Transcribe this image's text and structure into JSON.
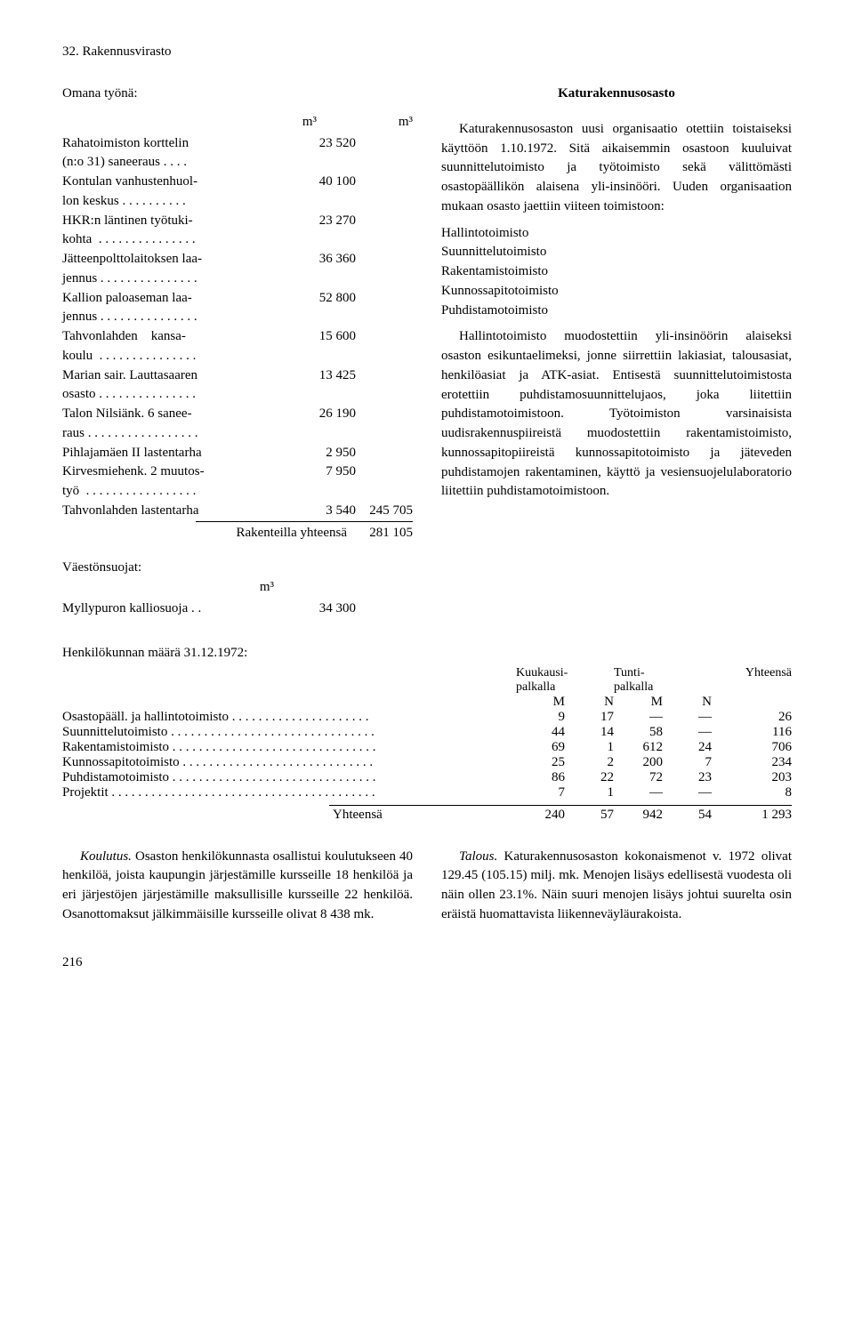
{
  "header": "32. Rakennusvirasto",
  "left": {
    "omana": "Omana työnä:",
    "m3": "m³",
    "rows": [
      {
        "label": "Rahatoimiston korttelin\n(n:o 31) saneeraus . . . .",
        "v1": "23 520",
        "v2": ""
      },
      {
        "label": "Kontulan vanhustenhuol-\nlon keskus . . . . . . . . . .",
        "v1": "40 100",
        "v2": ""
      },
      {
        "label": "HKR:n läntinen työtuki-\nkohta  . . . . . . . . . . . . . . .",
        "v1": "23 270",
        "v2": ""
      },
      {
        "label": "Jätteenpolttolaitoksen laa-\njennus . . . . . . . . . . . . . . .",
        "v1": "36 360",
        "v2": ""
      },
      {
        "label": "Kallion paloaseman laa-\njennus . . . . . . . . . . . . . . .",
        "v1": "52 800",
        "v2": ""
      },
      {
        "label": "Tahvonlahden    kansa-\nkoulu  . . . . . . . . . . . . . . .",
        "v1": "15 600",
        "v2": ""
      },
      {
        "label": "Marian sair. Lauttasaaren\nosasto . . . . . . . . . . . . . . .",
        "v1": "13 425",
        "v2": ""
      },
      {
        "label": "Talon Nilsiänk. 6 sanee-\nraus . . . . . . . . . . . . . . . . .",
        "v1": "26 190",
        "v2": ""
      },
      {
        "label": "Pihlajamäen II lastentarha",
        "v1": "2 950",
        "v2": ""
      },
      {
        "label": "Kirvesmiehenk. 2 muutos-\ntyö  . . . . . . . . . . . . . . . . .",
        "v1": "7 950",
        "v2": ""
      },
      {
        "label": "Tahvonlahden lastentarha",
        "v1": "3 540",
        "v2": "245 705"
      }
    ],
    "total_label": "Rakenteilla yhteensä",
    "total_val": "281 105",
    "vaeston": "Väestönsuojat:",
    "mylly_label": "Myllypuron kalliosuoja . .",
    "mylly_val": "34 300"
  },
  "right": {
    "title": "Katurakennusosasto",
    "p1": "Katurakennusosaston uusi organisaatio otettiin toistaiseksi käyttöön 1.10.1972. Sitä aikaisemmin osastoon kuuluivat suunnittelutoimisto ja työtoimisto sekä välittömästi osastopäällikön alaisena yli-insinööri. Uuden organisaation mukaan osasto jaettiin viiteen toimistoon:",
    "list": [
      "Hallintotoimisto",
      "Suunnittelutoimisto",
      "Rakentamistoimisto",
      "Kunnossapitotoimisto",
      "Puhdistamotoimisto"
    ],
    "p2": "Hallintotoimisto muodostettiin yli-insinöörin alaiseksi osaston esikuntaelimeksi, jonne siirrettiin lakiasiat, talousasiat, henkilöasiat ja ATK-asiat. Entisestä suunnittelutoimistosta erotettiin puhdistamosuunnittelujaos, joka liitettiin puhdistamotoimistoon. Työtoimiston varsinaisista uudisrakennuspiireistä muodostettiin rakentamistoimisto, kunnossapitopiireistä kunnossapitotoimisto ja jäteveden puhdistamojen rakentaminen, käyttö ja vesiensuojelulaboratorio liitettiin puhdistamotoimistoon."
  },
  "staff": {
    "heading": "Henkilökunnan määrä 31.12.1972:",
    "h_kuukausi": "Kuukausi-\npalkalla",
    "h_tunti": "Tunti-\npalkalla",
    "h_yht": "Yhteensä",
    "M": "M",
    "N": "N",
    "rows": [
      {
        "label": "Osastopääll. ja hallintotoimisto  . . . . . . . . . . . . . . . . . . . . .",
        "m1": "9",
        "n1": "17",
        "m2": "—",
        "n2": "—",
        "t": "26"
      },
      {
        "label": "Suunnittelutoimisto  . . . . . . . . . . . . . . . . . . . . . . . . . . . . . . .",
        "m1": "44",
        "n1": "14",
        "m2": "58",
        "n2": "—",
        "t": "116"
      },
      {
        "label": "Rakentamistoimisto . . . . . . . . . . . . . . . . . . . . . . . . . . . . . . .",
        "m1": "69",
        "n1": "1",
        "m2": "612",
        "n2": "24",
        "t": "706"
      },
      {
        "label": "Kunnossapitotoimisto  . . . . . . . . . . . . . . . . . . . . . . . . . . . . .",
        "m1": "25",
        "n1": "2",
        "m2": "200",
        "n2": "7",
        "t": "234"
      },
      {
        "label": "Puhdistamotoimisto . . . . . . . . . . . . . . . . . . . . . . . . . . . . . . .",
        "m1": "86",
        "n1": "22",
        "m2": "72",
        "n2": "23",
        "t": "203"
      },
      {
        "label": "Projektit . . . . . . . . . . . . . . . . . . . . . . . . . . . . . . . . . . . . . . . .",
        "m1": "7",
        "n1": "1",
        "m2": "—",
        "n2": "—",
        "t": "8"
      }
    ],
    "total": {
      "label": "Yhteensä",
      "m1": "240",
      "n1": "57",
      "m2": "942",
      "n2": "54",
      "t": "1 293"
    }
  },
  "bottom": {
    "left_em": "Koulutus.",
    "left_text": " Osaston henkilökunnasta osallistui koulutukseen 40 henkilöä, joista kaupungin järjestämille kursseille 18 henkilöä ja eri järjestöjen järjestämille maksullisille kursseille 22 henkilöä. Osanottomaksut jälkimmäisille kursseille olivat 8 438 mk.",
    "right_em": "Talous.",
    "right_text": " Katurakennusosaston kokonaismenot v. 1972 olivat 129.45 (105.15) milj. mk. Menojen lisäys edellisestä vuodesta oli näin ollen 23.1%. Näin suuri menojen lisäys johtui suurelta osin eräistä huomattavista liikenneväyläurakoista."
  },
  "page_number": "216"
}
